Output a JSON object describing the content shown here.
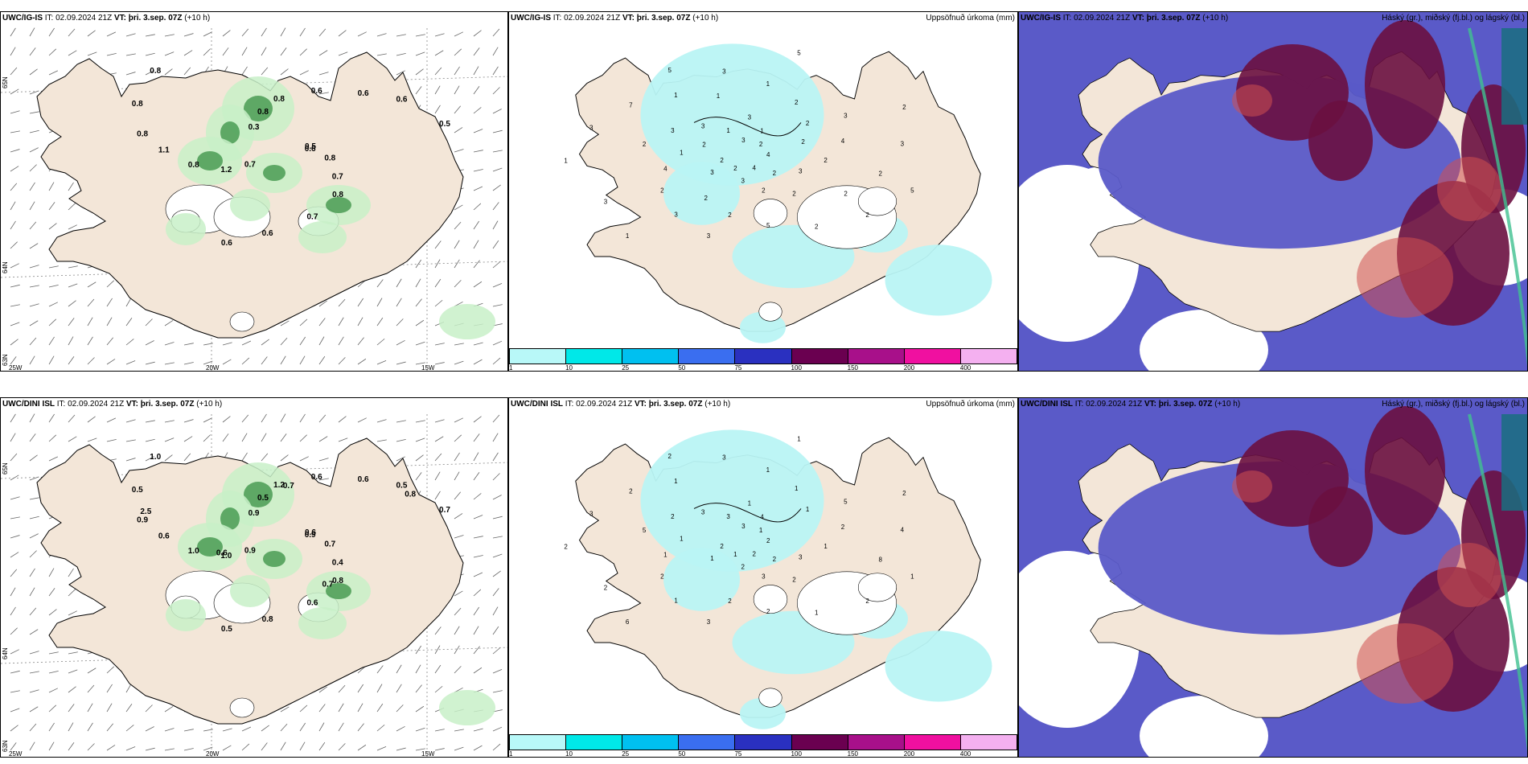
{
  "panels": [
    {
      "row": 0,
      "col": 0,
      "model": "UWC/IG-IS",
      "it": "IT: 02.09.2024 21Z",
      "vt_prefix": "VT:",
      "vt": "þri. 3.sep. 07Z",
      "lead": "(+10 h)",
      "right_title": "",
      "coords": [
        "65N",
        "64N",
        "63N",
        "25W",
        "20W",
        "15W"
      ],
      "values": [
        "0.5",
        "1.2",
        "0.8",
        "0.8",
        "0.8",
        "0.6",
        "0.6",
        "0.3",
        "0.8",
        "0.8",
        "0.6",
        "0.7",
        "0.8",
        "0.5",
        "0.7",
        "0.8",
        "0.7",
        "1.1",
        "0.6",
        "0.6",
        "0.8",
        "0.6"
      ]
    },
    {
      "row": 0,
      "col": 1,
      "model": "UWC/IG-IS",
      "it": "IT: 02.09.2024 21Z",
      "vt_prefix": "VT:",
      "vt": "þri. 3.sep. 07Z",
      "lead": "(+10 h)",
      "right_title": "Uppsöfnuð úrkoma (mm)",
      "values": [
        "4",
        "3",
        "3",
        "2",
        "2",
        "3",
        "3",
        "5",
        "5",
        "2",
        "1",
        "2",
        "3",
        "4",
        "3",
        "3",
        "2",
        "1",
        "2",
        "3",
        "3",
        "2",
        "2",
        "1",
        "2",
        "3",
        "2",
        "2",
        "1",
        "3",
        "4",
        "2",
        "5",
        "7",
        "3",
        "1",
        "3",
        "2",
        "1",
        "2",
        "2",
        "1",
        "2",
        "3",
        "5",
        "4",
        "2",
        "2",
        "2",
        "1",
        "2"
      ]
    },
    {
      "row": 0,
      "col": 2,
      "model": "UWC/IG-IS",
      "it": "IT: 02.09.2024 21Z",
      "vt_prefix": "VT:",
      "vt": "þri. 3.sep. 07Z",
      "lead": "(+10 h)",
      "right_title": "Háský (gr.), miðský (fj.bl.) og lágský (bl.)"
    },
    {
      "row": 1,
      "col": 0,
      "model": "UWC/DINI ISL",
      "it": "IT: 02.09.2024 21Z",
      "vt_prefix": "VT:",
      "vt": "þri. 3.sep. 07Z",
      "lead": "(+10 h)",
      "right_title": "",
      "coords": [
        "65N",
        "64N",
        "63N",
        "25W",
        "20W",
        "15W"
      ],
      "values": [
        "0.6",
        "1.0",
        "1.2",
        "0.8",
        "0.9",
        "0.5",
        "0.5",
        "0.9",
        "0.7",
        "1.0",
        "0.6",
        "0.6",
        "0.5",
        "0.7",
        "0.9",
        "0.5",
        "0.4",
        "0.6",
        "0.6",
        "0.8",
        "1.0",
        "0.9",
        "0.6",
        "0.7",
        "0.7",
        "2.5",
        "0.8"
      ]
    },
    {
      "row": 1,
      "col": 1,
      "model": "UWC/DINI ISL",
      "it": "IT: 02.09.2024 21Z",
      "vt_prefix": "VT:",
      "vt": "þri. 3.sep. 07Z",
      "lead": "(+10 h)",
      "right_title": "Uppsöfnuð úrkoma (mm)",
      "values": [
        "2",
        "1",
        "1",
        "2",
        "5",
        "5",
        "3",
        "2",
        "1",
        "2",
        "4",
        "3",
        "2",
        "2",
        "1",
        "3",
        "2",
        "2",
        "1",
        "2",
        "3",
        "1",
        "2",
        "1",
        "1",
        "3",
        "2",
        "1",
        "3",
        "3",
        "1",
        "1",
        "2",
        "2",
        "4",
        "6",
        "3",
        "2",
        "1",
        "1",
        "2",
        "1",
        "8",
        "2",
        "1",
        "2"
      ]
    },
    {
      "row": 1,
      "col": 2,
      "model": "UWC/DINI ISL",
      "it": "IT: 02.09.2024 21Z",
      "vt_prefix": "VT:",
      "vt": "þri. 3.sep. 07Z",
      "lead": "(+10 h)",
      "right_title": "Háský (gr.), miðský (fj.bl.) og lágský (bl.)"
    }
  ],
  "colorbar": {
    "ticks": [
      "1",
      "10",
      "25",
      "50",
      "75",
      "100",
      "150",
      "200",
      "400"
    ],
    "colors": [
      "#b8f8f8",
      "#00e8e8",
      "#00c0f0",
      "#3a6ef0",
      "#2a30c0",
      "#6a0050",
      "#a8108a",
      "#f010a0",
      "#f4b0f0"
    ]
  },
  "colors": {
    "land": "#f3e6d8",
    "precip_light": "#b9f4f4",
    "precip_green": "#c8f0c8",
    "precip_dkgreen": "#2e8a3a",
    "high_cloud": "#6a1040",
    "mid_cloud": "#5a5ac8",
    "low_cloud": "#d05050"
  }
}
